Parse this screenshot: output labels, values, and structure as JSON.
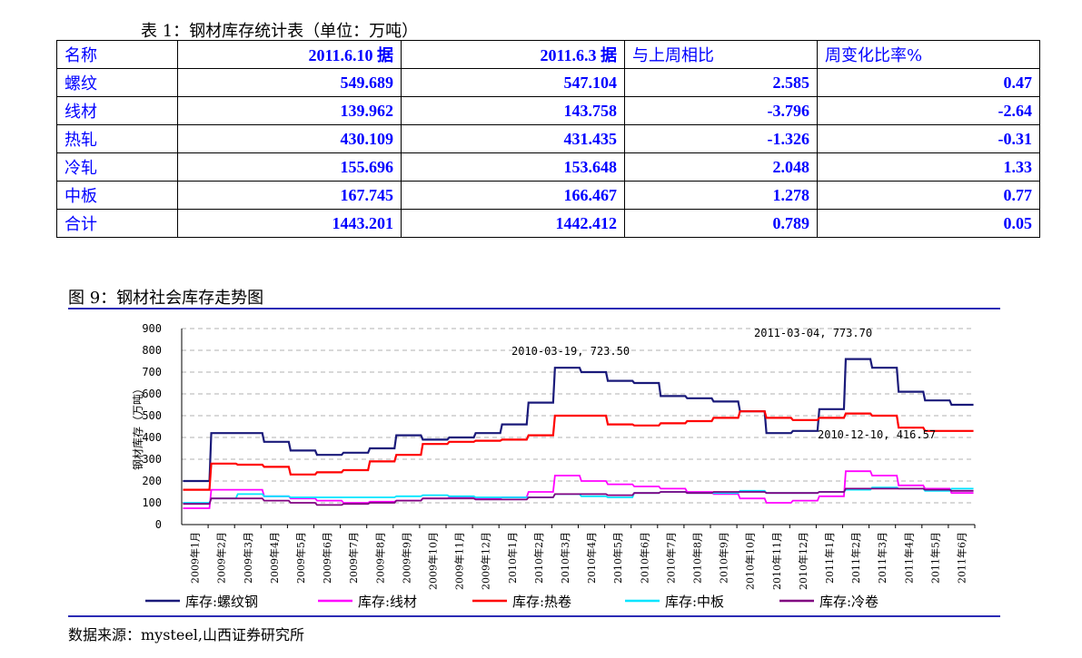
{
  "table": {
    "caption": "表 1：钢材库存统计表（单位：万吨）",
    "headers": [
      "名称",
      "2011.6.10 据",
      "2011.6.3 据",
      "与上周相比",
      "周变化比率%"
    ],
    "rows": [
      [
        "螺纹",
        "549.689",
        "547.104",
        "2.585",
        "0.47"
      ],
      [
        "线材",
        "139.962",
        "143.758",
        "-3.796",
        "-2.64"
      ],
      [
        "热轧",
        "430.109",
        "431.435",
        "-1.326",
        "-0.31"
      ],
      [
        "冷轧",
        "155.696",
        "153.648",
        "2.048",
        "1.33"
      ],
      [
        "中板",
        "167.745",
        "166.467",
        "1.278",
        "0.77"
      ],
      [
        "合计",
        "1443.201",
        "1442.412",
        "0.789",
        "0.05"
      ]
    ]
  },
  "figure": {
    "caption": "图 9：钢材社会库存走势图",
    "source": "数据来源：mysteel,山西证券研究所"
  },
  "chart_data": {
    "type": "line",
    "ylabel": "钢材库存（万吨）",
    "ylim": [
      0,
      900
    ],
    "yticks": [
      "0",
      "100",
      "200",
      "300",
      "400",
      "500",
      "600",
      "700",
      "800",
      "900"
    ],
    "categories": [
      "2009年1月",
      "2009年2月",
      "2009年3月",
      "2009年4月",
      "2009年5月",
      "2009年6月",
      "2009年7月",
      "2009年8月",
      "2009年9月",
      "2009年10月",
      "2009年11月",
      "2009年12月",
      "2010年1月",
      "2010年2月",
      "2010年3月",
      "2010年4月",
      "2010年5月",
      "2010年6月",
      "2010年7月",
      "2010年8月",
      "2010年9月",
      "2010年10月",
      "2010年11月",
      "2010年12月",
      "2011年1月",
      "2011年2月",
      "2011年3月",
      "2011年4月",
      "2011年5月",
      "2011年6月"
    ],
    "grid": true,
    "legend": "bottom",
    "series": [
      {
        "name": "库存:螺纹钢",
        "color": "#1a1a7a",
        "values": [
          200,
          420,
          420,
          380,
          340,
          320,
          330,
          350,
          410,
          390,
          400,
          420,
          460,
          560,
          720,
          700,
          660,
          650,
          590,
          580,
          565,
          520,
          420,
          430,
          530,
          760,
          720,
          610,
          570,
          550
        ]
      },
      {
        "name": "库存:线材",
        "color": "#ff00ff",
        "values": [
          75,
          160,
          160,
          130,
          120,
          110,
          100,
          105,
          110,
          120,
          125,
          120,
          125,
          150,
          225,
          200,
          185,
          175,
          165,
          150,
          140,
          120,
          100,
          110,
          130,
          245,
          225,
          180,
          165,
          145
        ]
      },
      {
        "name": "库存:热卷",
        "color": "#ff0000",
        "values": [
          160,
          280,
          275,
          265,
          230,
          240,
          250,
          290,
          320,
          370,
          380,
          385,
          390,
          410,
          500,
          500,
          460,
          455,
          465,
          475,
          490,
          520,
          490,
          480,
          490,
          510,
          500,
          445,
          430,
          430
        ]
      },
      {
        "name": "库存:中板",
        "color": "#00e5ff",
        "values": [
          100,
          120,
          140,
          130,
          125,
          125,
          125,
          125,
          130,
          135,
          130,
          125,
          125,
          125,
          140,
          130,
          125,
          145,
          150,
          145,
          145,
          155,
          145,
          145,
          150,
          160,
          170,
          165,
          155,
          165
        ]
      },
      {
        "name": "库存:冷卷",
        "color": "#800080",
        "values": [
          95,
          120,
          120,
          110,
          100,
          90,
          95,
          100,
          110,
          120,
          120,
          115,
          115,
          125,
          140,
          140,
          135,
          145,
          150,
          145,
          150,
          150,
          145,
          145,
          150,
          165,
          165,
          165,
          160,
          155
        ]
      }
    ],
    "annotations": [
      {
        "text": "2010-03-19, 723.50"
      },
      {
        "text": "2011-03-04, 773.70"
      },
      {
        "text": "2010-12-10, 416.57"
      }
    ]
  }
}
